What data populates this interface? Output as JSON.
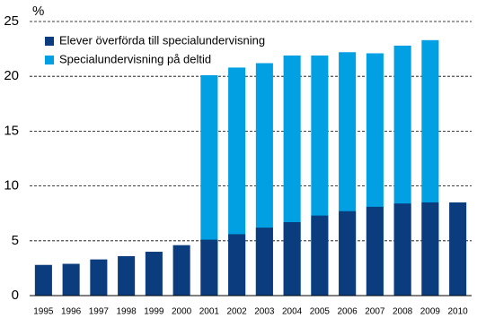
{
  "chart_data": {
    "type": "bar",
    "bar_mode": "overlay",
    "ylabel": "%",
    "categories": [
      "1995",
      "1996",
      "1997",
      "1998",
      "1999",
      "2000",
      "2001",
      "2002",
      "2003",
      "2004",
      "2005",
      "2006",
      "2007",
      "2008",
      "2009",
      "2010"
    ],
    "series": [
      {
        "name": "Elever överförda till specialundervisning",
        "color": "#0b3d7e",
        "values": [
          2.8,
          2.9,
          3.3,
          3.6,
          4.0,
          4.6,
          5.1,
          5.6,
          6.2,
          6.7,
          7.3,
          7.7,
          8.1,
          8.4,
          8.5,
          8.5
        ]
      },
      {
        "name": "Specialundervisning på deltid",
        "color": "#00a0e3",
        "values": [
          null,
          null,
          null,
          null,
          null,
          null,
          20.1,
          20.8,
          21.2,
          21.9,
          21.9,
          22.2,
          22.1,
          22.8,
          23.3,
          null
        ]
      }
    ],
    "ylim": [
      0,
      25
    ],
    "yticks": [
      0,
      5,
      10,
      15,
      20,
      25
    ],
    "grid": true,
    "legend": "top-left"
  }
}
